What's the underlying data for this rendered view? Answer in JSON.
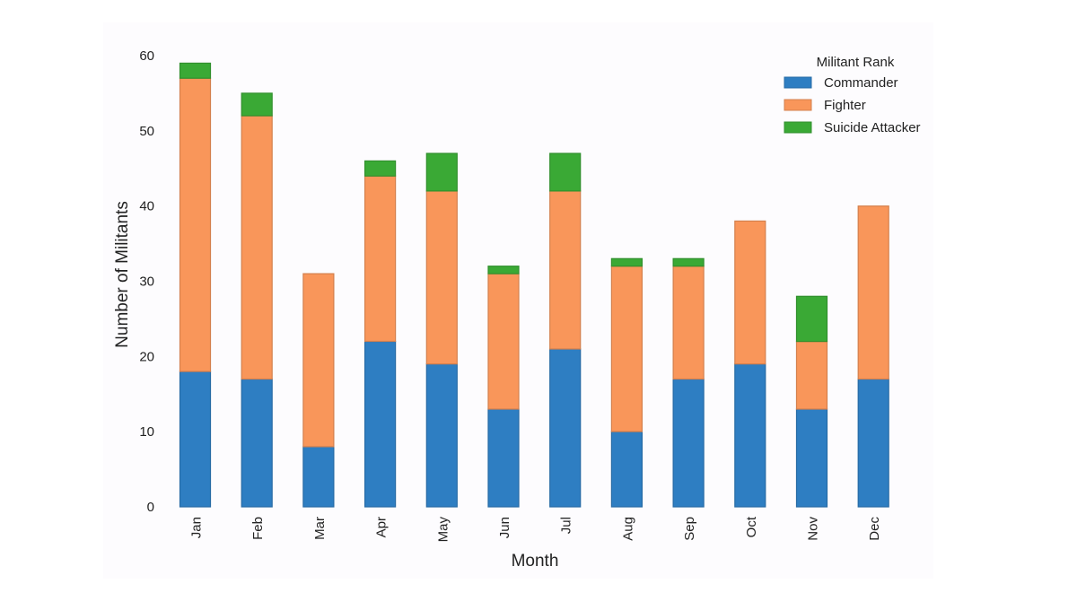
{
  "chart_data": {
    "type": "bar",
    "stacked": true,
    "title": "",
    "xlabel": "Month",
    "ylabel": "Number of Militants",
    "ylim": [
      0,
      60
    ],
    "yticks": [
      0,
      10,
      20,
      30,
      40,
      50,
      60
    ],
    "grid": false,
    "categories": [
      "Jan",
      "Feb",
      "Mar",
      "Apr",
      "May",
      "Jun",
      "Jul",
      "Aug",
      "Sep",
      "Oct",
      "Nov",
      "Dec"
    ],
    "series": [
      {
        "name": "Commander",
        "color": "#2e7ec2",
        "values": [
          18,
          17,
          8,
          22,
          19,
          13,
          21,
          10,
          17,
          19,
          13,
          17
        ]
      },
      {
        "name": "Fighter",
        "color": "#f9965a",
        "values": [
          39,
          35,
          23,
          22,
          23,
          18,
          21,
          22,
          15,
          19,
          9,
          23
        ]
      },
      {
        "name": "Suicide Attacker",
        "color": "#3aa935",
        "values": [
          2,
          3,
          0,
          2,
          5,
          1,
          5,
          1,
          1,
          0,
          6,
          0
        ]
      }
    ],
    "legend": {
      "title": "Militant Rank",
      "placement": "top-right"
    }
  }
}
